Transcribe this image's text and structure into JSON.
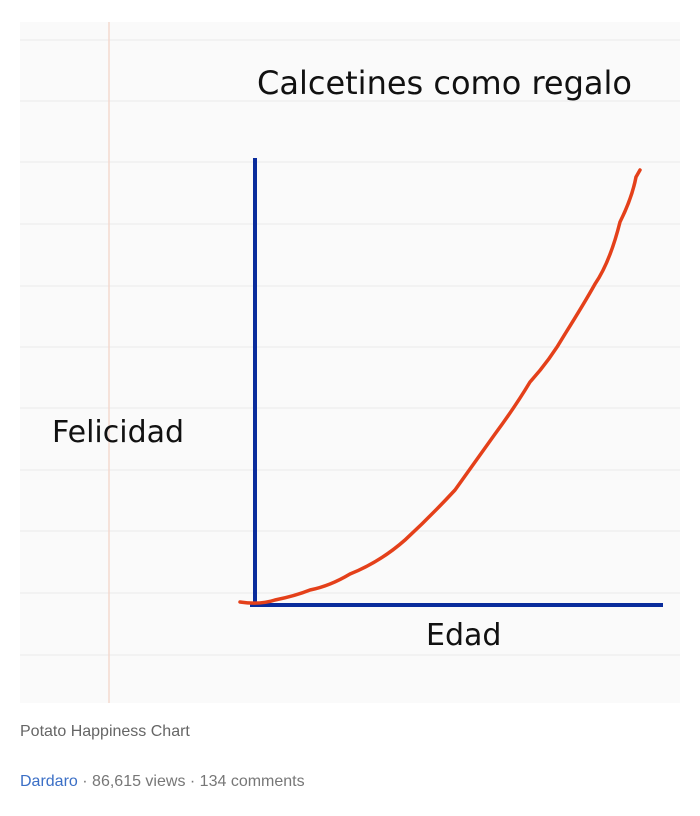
{
  "image": {
    "title": "Calcetines como regalo",
    "y_label": "Felicidad",
    "x_label": "Edad"
  },
  "caption": "Potato Happiness Chart",
  "meta": {
    "author": "Dardaro",
    "separator": "·",
    "views": "86,615 views",
    "comments": "134 comments"
  }
}
